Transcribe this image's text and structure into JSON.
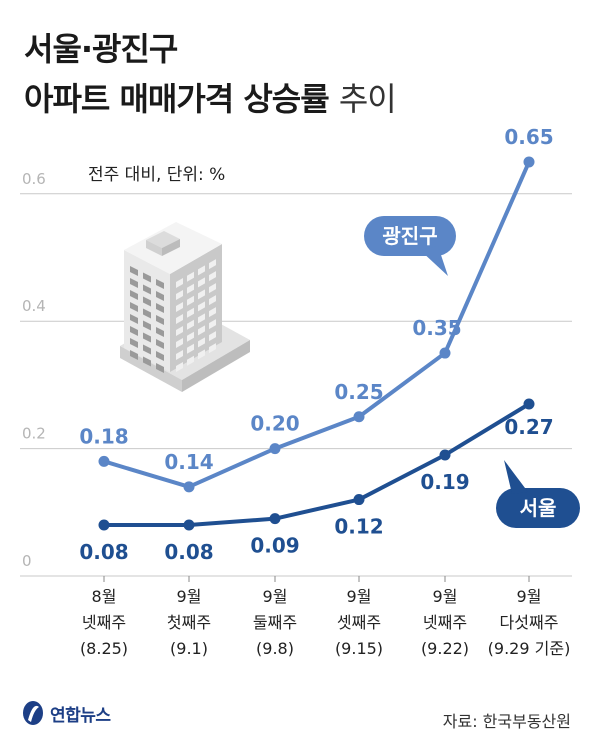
{
  "title": {
    "line1": "서울·광진구",
    "line2_bold": "아파트 매매가격 상승률",
    "line2_light": "추이"
  },
  "unit_note": "전주 대비, 단위: %",
  "source": "자료: 한국부동산원",
  "logo_text": "연합뉴스",
  "colors": {
    "gwangjin": "#5b86c7",
    "seoul": "#1f4f91",
    "grid": "#c9c9c9",
    "axis_text": "#b5b5b5"
  },
  "chart_data": {
    "type": "line",
    "title": "서울·광진구 아파트 매매가격 상승률 추이",
    "ylabel": "전주 대비, 단위: %",
    "ylim": [
      0,
      0.7
    ],
    "yticks": [
      "0",
      "0.2",
      "0.4",
      "0.6"
    ],
    "grid": true,
    "categories": [
      {
        "week": "8월",
        "label": "넷째주",
        "date": "(8.25)"
      },
      {
        "week": "9월",
        "label": "첫째주",
        "date": "(9.1)"
      },
      {
        "week": "9월",
        "label": "둘째주",
        "date": "(9.8)"
      },
      {
        "week": "9월",
        "label": "셋째주",
        "date": "(9.15)"
      },
      {
        "week": "9월",
        "label": "넷째주",
        "date": "(9.22)"
      },
      {
        "week": "9월",
        "label": "다섯째주",
        "date": "(9.29 기준)"
      }
    ],
    "series": [
      {
        "name": "광진구",
        "values": [
          0.18,
          0.14,
          0.2,
          0.25,
          0.35,
          0.65
        ],
        "labels": [
          "0.18",
          "0.14",
          "0.20",
          "0.25",
          "0.35",
          "0.65"
        ]
      },
      {
        "name": "서울",
        "values": [
          0.08,
          0.08,
          0.09,
          0.12,
          0.19,
          0.27
        ],
        "labels": [
          "0.08",
          "0.08",
          "0.09",
          "0.12",
          "0.19",
          "0.27"
        ]
      }
    ]
  }
}
